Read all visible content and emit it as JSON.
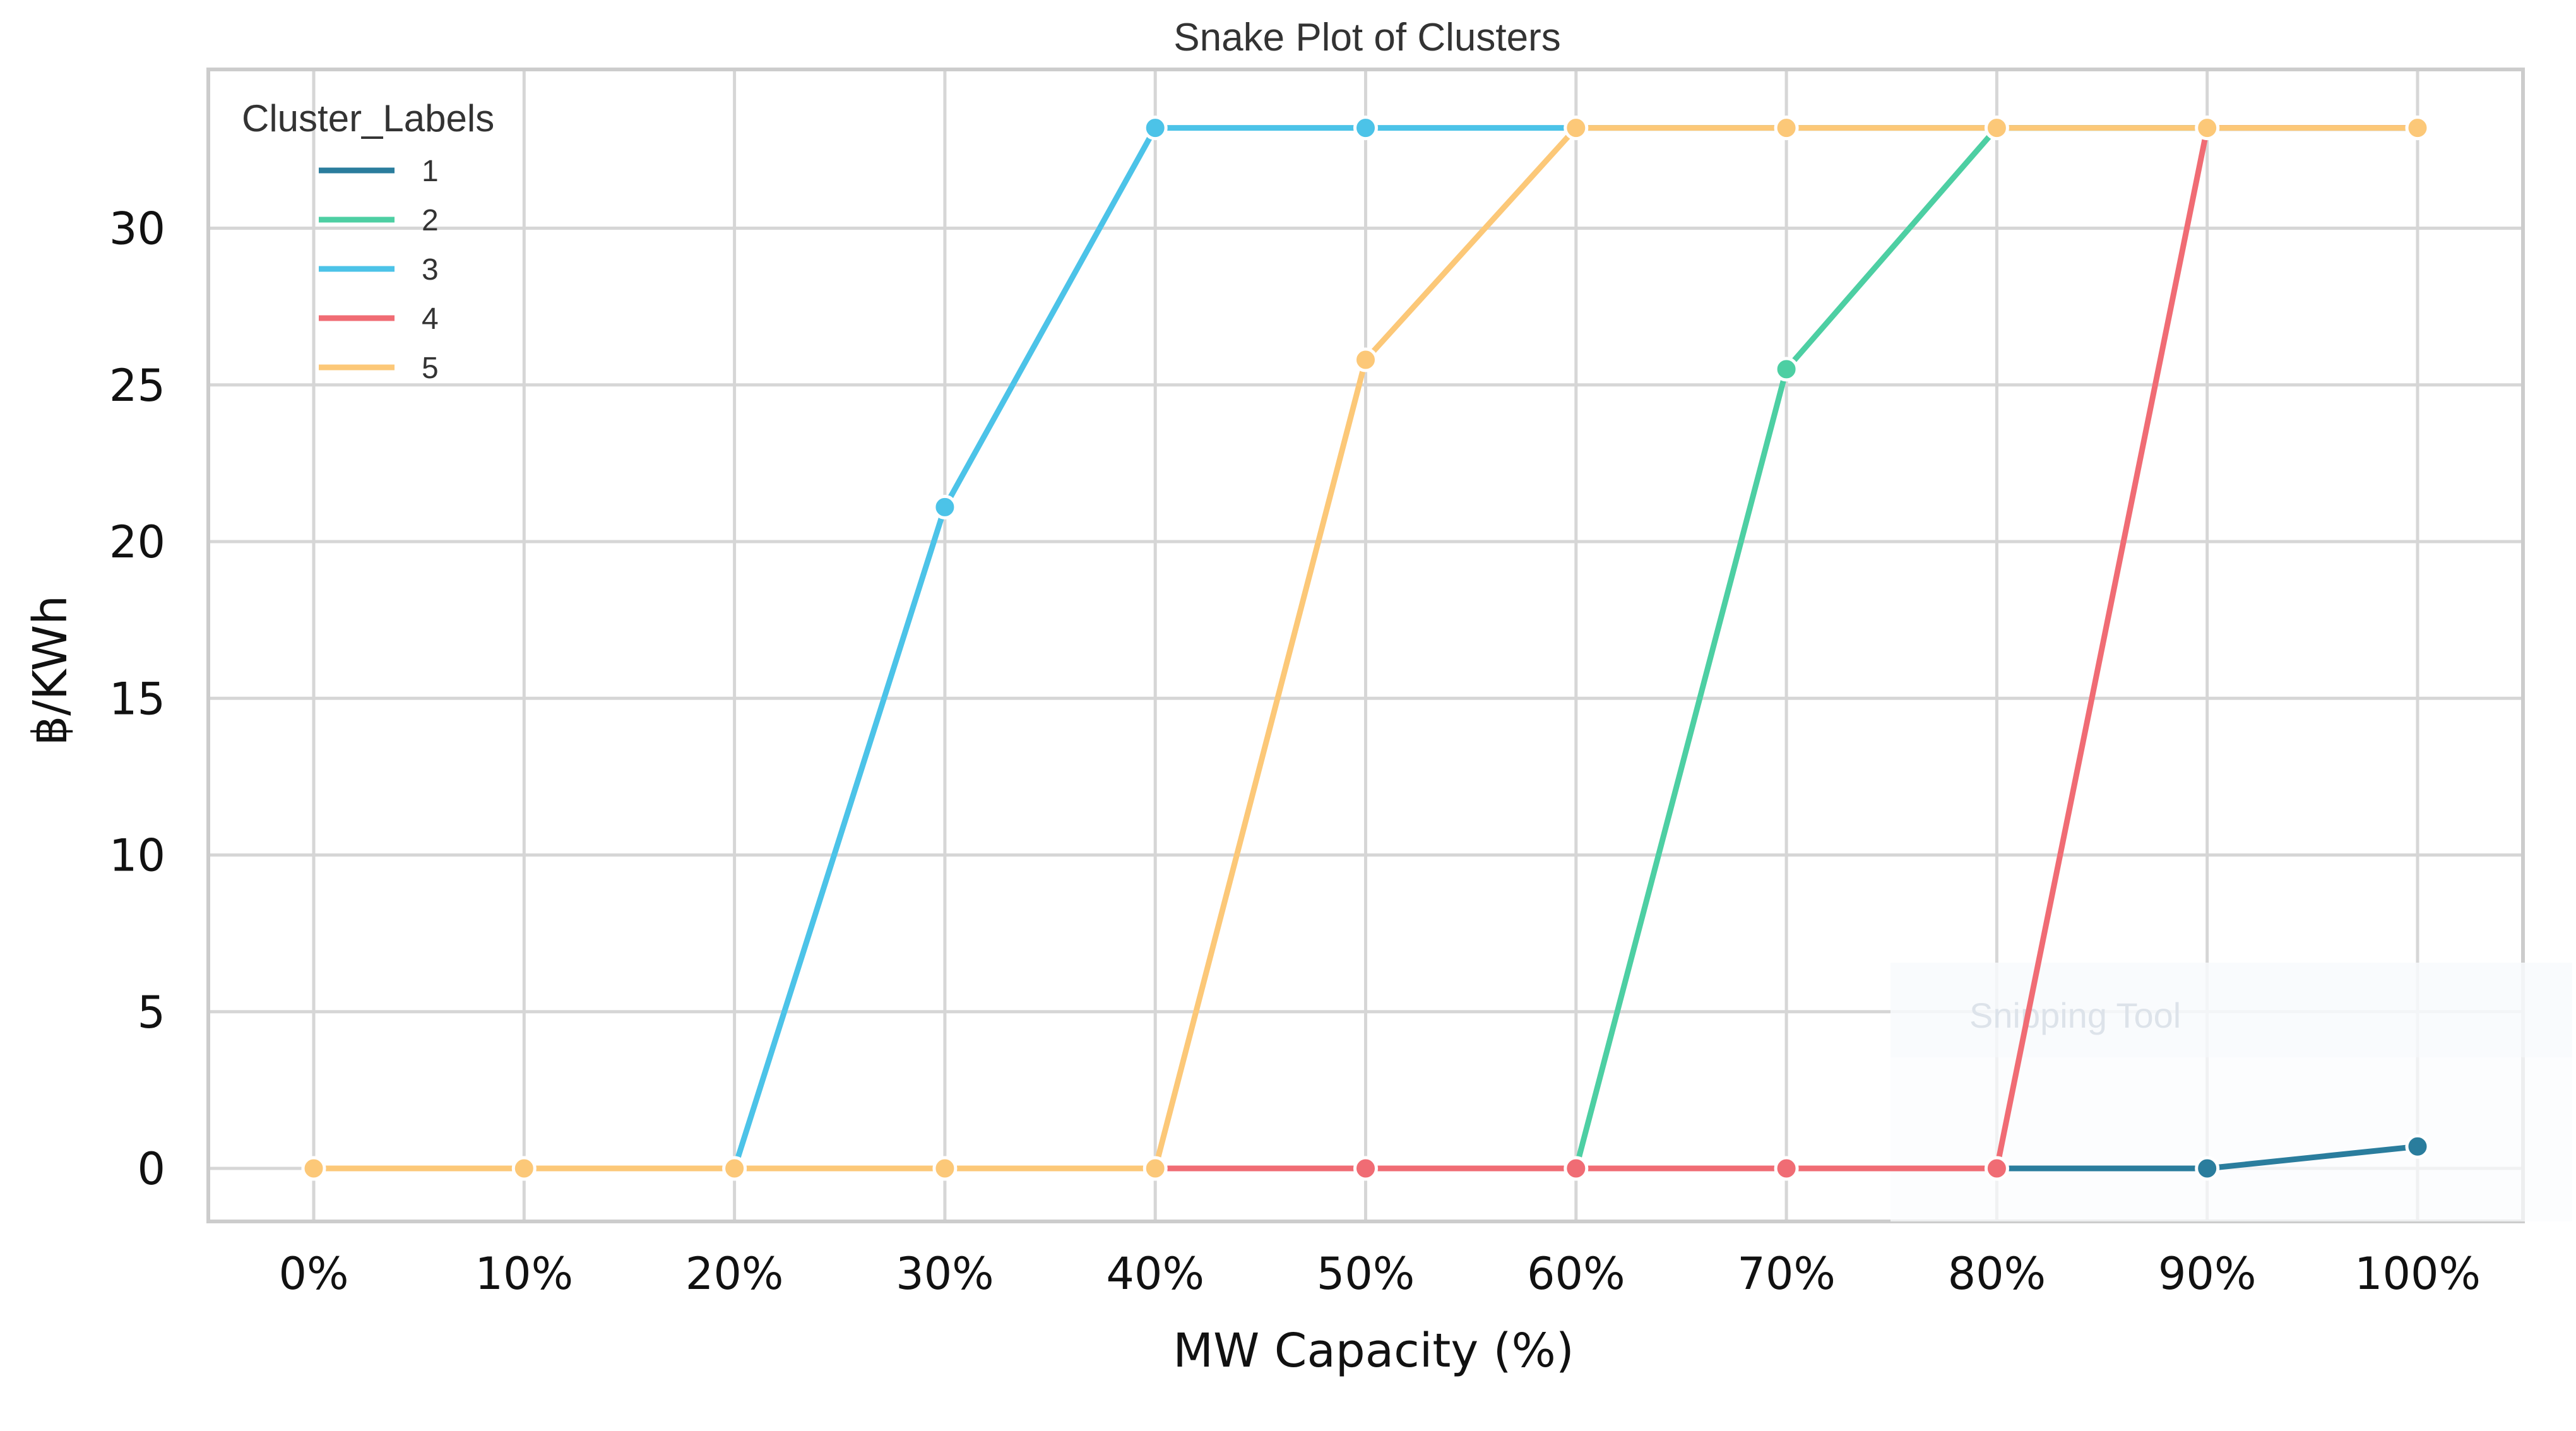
{
  "chart_data": {
    "type": "line",
    "title": "Snake Plot of Clusters",
    "xlabel": "MW Capacity (%)",
    "ylabel": "฿/KWh",
    "categories": [
      "0%",
      "10%",
      "20%",
      "30%",
      "40%",
      "50%",
      "60%",
      "70%",
      "80%",
      "90%",
      "100%"
    ],
    "yticks": [
      0,
      5,
      10,
      15,
      20,
      25,
      30
    ],
    "ylim": [
      -1.7,
      35.2
    ],
    "grid": true,
    "legend": {
      "title": "Cluster_Labels",
      "placement": "top-left"
    },
    "series": [
      {
        "name": "1",
        "color": "#2a7d9d",
        "values": [
          0,
          0,
          0,
          0,
          0,
          0,
          0,
          0,
          0,
          0,
          0.7
        ]
      },
      {
        "name": "2",
        "color": "#4dcfa3",
        "values": [
          0,
          0,
          0,
          0,
          0,
          0,
          0,
          25.5,
          33.2,
          33.2,
          33.2
        ]
      },
      {
        "name": "3",
        "color": "#4cc3e8",
        "values": [
          0,
          0,
          0,
          21.1,
          33.2,
          33.2,
          33.2,
          33.2,
          33.2,
          33.2,
          33.2
        ]
      },
      {
        "name": "4",
        "color": "#f06c74",
        "values": [
          0,
          0,
          0,
          0,
          0,
          0,
          0,
          0,
          0,
          33.2,
          33.2
        ]
      },
      {
        "name": "5",
        "color": "#fcc878",
        "values": [
          0,
          0,
          0,
          0,
          0,
          25.8,
          33.2,
          33.2,
          33.2,
          33.2,
          33.2
        ]
      }
    ],
    "overlay_text": "Snipping Tool"
  }
}
